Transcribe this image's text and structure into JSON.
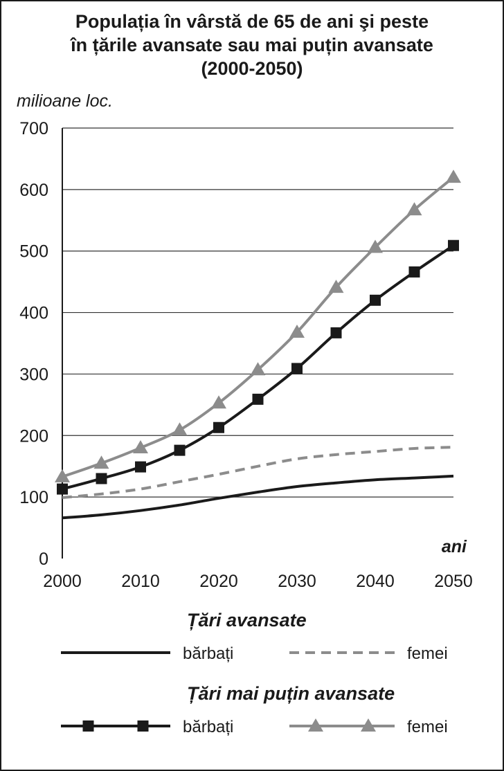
{
  "chart_data": {
    "type": "line",
    "title": [
      "Populația în vârstă de 65 de ani şi peste",
      "în țările avansate sau mai puțin avansate",
      "(2000-2050)"
    ],
    "ylabel": "milioane loc.",
    "xlabel": "ani",
    "ylim": [
      0,
      700
    ],
    "yticks": [
      0,
      100,
      200,
      300,
      400,
      500,
      600,
      700
    ],
    "xlim": [
      2000,
      2050
    ],
    "xticks": [
      2000,
      2010,
      2020,
      2030,
      2040,
      2050
    ],
    "grid": true,
    "legend_groups": [
      {
        "title": "Țări avansate",
        "series": [
          {
            "name": "bărbați",
            "style": "solid",
            "marker": "none",
            "color": "#1a1a1a",
            "x": [
              2000,
              2005,
              2010,
              2015,
              2020,
              2025,
              2030,
              2035,
              2040,
              2045,
              2050
            ],
            "y": [
              66,
              71,
              78,
              87,
              98,
              108,
              117,
              123,
              128,
              131,
              134
            ]
          },
          {
            "name": "femei",
            "style": "dashed",
            "marker": "none",
            "color": "#8c8c8c",
            "x": [
              2000,
              2005,
              2010,
              2015,
              2020,
              2025,
              2030,
              2035,
              2040,
              2045,
              2050
            ],
            "y": [
              99,
              105,
              113,
              125,
              137,
              150,
              162,
              169,
              174,
              179,
              181
            ]
          }
        ]
      },
      {
        "title": "Țări mai puțin avansate",
        "series": [
          {
            "name": "bărbați",
            "style": "solid",
            "marker": "square",
            "color": "#1a1a1a",
            "x": [
              2000,
              2005,
              2010,
              2015,
              2020,
              2025,
              2030,
              2035,
              2040,
              2045,
              2050
            ],
            "y": [
              113,
              130,
              149,
              176,
              213,
              259,
              309,
              367,
              420,
              466,
              509
            ]
          },
          {
            "name": "femei",
            "style": "solid",
            "marker": "triangle",
            "color": "#8c8c8c",
            "x": [
              2000,
              2005,
              2010,
              2015,
              2020,
              2025,
              2030,
              2035,
              2040,
              2045,
              2050
            ],
            "y": [
              133,
              155,
              180,
              209,
              253,
              307,
              368,
              441,
              506,
              567,
              620
            ]
          }
        ]
      }
    ]
  }
}
